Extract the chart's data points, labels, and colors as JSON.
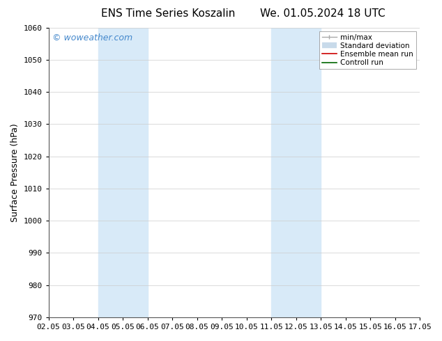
{
  "title_left": "ENS Time Series Koszalin",
  "title_right": "We. 01.05.2024 18 UTC",
  "ylabel": "Surface Pressure (hPa)",
  "xlabel": "",
  "ylim": [
    970,
    1060
  ],
  "yticks": [
    970,
    980,
    990,
    1000,
    1010,
    1020,
    1030,
    1040,
    1050,
    1060
  ],
  "xtick_labels": [
    "02.05",
    "03.05",
    "04.05",
    "05.05",
    "06.05",
    "07.05",
    "08.05",
    "09.05",
    "10.05",
    "11.05",
    "12.05",
    "13.05",
    "14.05",
    "15.05",
    "16.05",
    "17.05"
  ],
  "xtick_positions": [
    0,
    1,
    2,
    3,
    4,
    5,
    6,
    7,
    8,
    9,
    10,
    11,
    12,
    13,
    14,
    15
  ],
  "shaded_regions": [
    {
      "x_start": 2,
      "x_end": 4,
      "color": "#d8eaf8"
    },
    {
      "x_start": 9,
      "x_end": 11,
      "color": "#d8eaf8"
    }
  ],
  "watermark_text": "© woweather.com",
  "watermark_color": "#4488cc",
  "bg_color": "#ffffff",
  "plot_bg_color": "#ffffff",
  "grid_color": "#cccccc",
  "legend_items": [
    {
      "label": "min/max",
      "color": "#aaaaaa",
      "linewidth": 1.0
    },
    {
      "label": "Standard deviation",
      "color": "#c8daea",
      "linewidth": 6
    },
    {
      "label": "Ensemble mean run",
      "color": "#cc0000",
      "linewidth": 1.2
    },
    {
      "label": "Controll run",
      "color": "#006600",
      "linewidth": 1.2
    }
  ],
  "spine_color": "#555555",
  "tick_color": "#000000",
  "title_fontsize": 11,
  "axis_label_fontsize": 9,
  "tick_fontsize": 8,
  "watermark_fontsize": 9,
  "legend_fontsize": 7.5
}
